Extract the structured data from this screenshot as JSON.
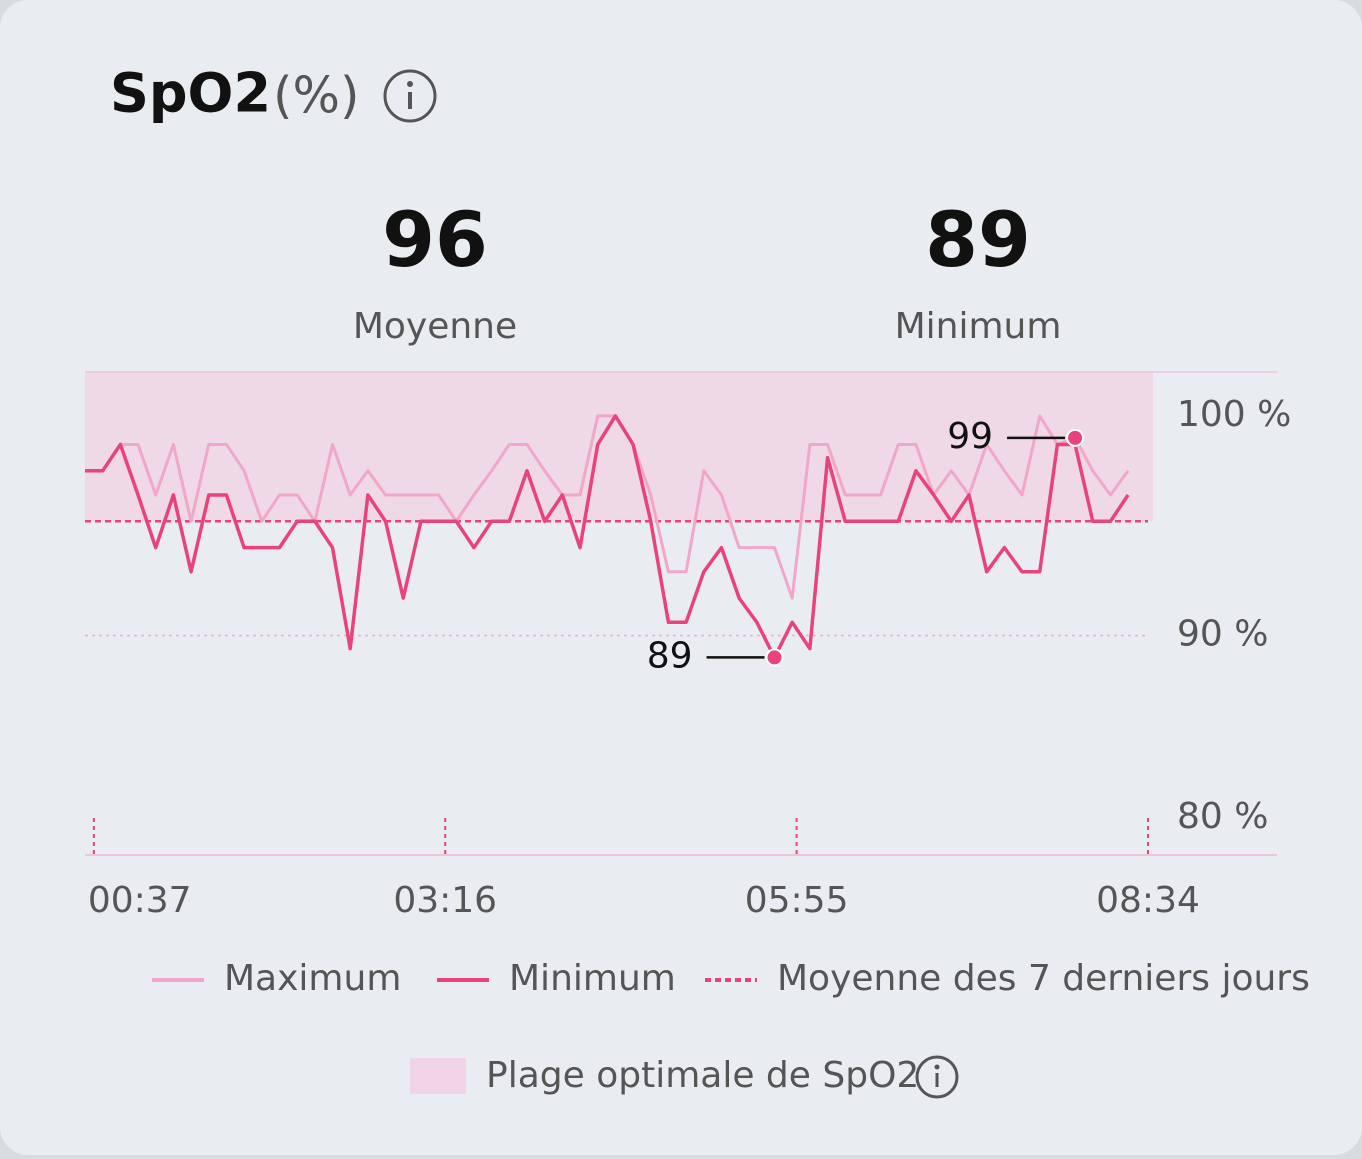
{
  "title": "SpO2",
  "unit": "(%)",
  "stats": [
    {
      "value": 96,
      "label": "Moyenne"
    },
    {
      "value": 89,
      "label": "Minimum"
    }
  ],
  "chart_data": {
    "type": "line",
    "x": [
      33,
      41,
      49,
      57,
      65,
      73,
      81,
      89,
      97,
      105,
      113,
      121,
      129,
      137,
      145,
      153,
      161,
      169,
      177,
      185,
      193,
      201,
      209,
      217,
      225,
      233,
      241,
      249,
      257,
      265,
      273,
      281,
      289,
      297,
      305,
      313,
      321,
      329,
      337,
      345,
      353,
      361,
      369,
      377,
      385,
      393,
      401,
      409,
      417,
      425,
      433,
      441,
      449,
      457,
      465,
      473,
      481,
      489,
      497,
      505
    ],
    "xlim": [
      33,
      514
    ],
    "xticks": [
      {
        "value": 37,
        "label": "00:37"
      },
      {
        "value": 196,
        "label": "03:16"
      },
      {
        "value": 355,
        "label": "05:55"
      },
      {
        "value": 514,
        "label": "08:34"
      }
    ],
    "ylim": [
      80,
      102
    ],
    "yticks": [
      {
        "value": 100,
        "label": "100 %"
      },
      {
        "value": 90,
        "label": "90 %"
      },
      {
        "value": 80,
        "label": "80 %"
      }
    ],
    "series": [
      {
        "name": "Maximum",
        "color": "#f1a7c7",
        "values": [
          97.5,
          97.5,
          98.7,
          98.7,
          96.4,
          98.7,
          95.2,
          98.7,
          98.7,
          97.5,
          95.2,
          96.4,
          96.4,
          95.2,
          98.7,
          96.4,
          97.5,
          96.4,
          96.4,
          96.4,
          96.4,
          95.2,
          96.4,
          97.5,
          98.7,
          98.7,
          97.5,
          96.4,
          96.4,
          100.0,
          100.0,
          98.7,
          96.4,
          92.9,
          92.9,
          97.5,
          96.4,
          94.0,
          94.0,
          94.0,
          91.7,
          98.7,
          98.7,
          96.4,
          96.4,
          96.4,
          98.7,
          98.7,
          96.4,
          97.5,
          96.4,
          98.7,
          97.5,
          96.4,
          100.0,
          98.7,
          99,
          97.5,
          96.4,
          97.5
        ]
      },
      {
        "name": "Minimum",
        "color": "#e9437c",
        "values": [
          97.5,
          97.5,
          98.7,
          96.4,
          94.0,
          96.4,
          92.9,
          96.4,
          96.4,
          94.0,
          94.0,
          94.0,
          95.2,
          95.2,
          94.0,
          89.4,
          96.4,
          95.2,
          91.7,
          95.2,
          95.2,
          95.2,
          94.0,
          95.2,
          95.2,
          97.5,
          95.2,
          96.4,
          94.0,
          98.7,
          100.0,
          98.7,
          95.2,
          90.6,
          90.6,
          92.9,
          94.0,
          91.7,
          90.6,
          89,
          90.6,
          89.4,
          98.1,
          95.2,
          95.2,
          95.2,
          95.2,
          97.5,
          96.4,
          95.2,
          96.4,
          92.9,
          94.0,
          92.9,
          92.9,
          98.7,
          98.7,
          95.2,
          95.2,
          96.4
        ]
      }
    ],
    "average": {
      "name": "Moyenne des 7 derniers jours",
      "value": 95.2,
      "color": "#e9437c"
    },
    "optimal_range": {
      "name": "Plage optimale de SpO2",
      "range": [
        95.2,
        102
      ],
      "color": "#f0d3e4"
    },
    "annotations": [
      {
        "x": 345,
        "value": 89
      },
      {
        "x": 481,
        "value": 99
      }
    ]
  }
}
